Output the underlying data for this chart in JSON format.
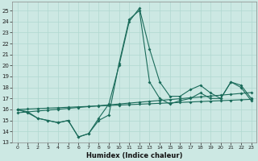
{
  "xlabel": "Humidex (Indice chaleur)",
  "background_color": "#cce8e3",
  "grid_color": "#b0d8d0",
  "line_color": "#1a6b5a",
  "xlim": [
    -0.5,
    23.5
  ],
  "ylim": [
    13,
    25.8
  ],
  "yticks": [
    13,
    14,
    15,
    16,
    17,
    18,
    19,
    20,
    21,
    22,
    23,
    24,
    25
  ],
  "xticks": [
    0,
    1,
    2,
    3,
    4,
    5,
    6,
    7,
    8,
    9,
    10,
    11,
    12,
    13,
    14,
    15,
    16,
    17,
    18,
    19,
    20,
    21,
    22,
    23
  ],
  "series1": [
    16.0,
    15.7,
    15.2,
    15.0,
    14.8,
    15.0,
    13.5,
    13.8,
    15.2,
    16.5,
    20.0,
    24.0,
    25.2,
    21.5,
    18.5,
    17.2,
    17.2,
    17.8,
    18.2,
    17.5,
    17.0,
    18.5,
    18.2,
    17.0
  ],
  "series2": [
    16.0,
    15.8,
    15.2,
    15.0,
    14.8,
    15.0,
    13.5,
    13.8,
    15.0,
    15.5,
    20.2,
    24.2,
    25.0,
    18.5,
    17.0,
    16.5,
    16.8,
    17.0,
    17.5,
    17.0,
    17.0,
    18.5,
    18.0,
    16.8
  ],
  "series3": [
    15.7,
    15.78,
    15.86,
    15.94,
    16.02,
    16.1,
    16.18,
    16.26,
    16.34,
    16.42,
    16.5,
    16.58,
    16.66,
    16.74,
    16.82,
    16.9,
    16.98,
    17.06,
    17.14,
    17.22,
    17.3,
    17.38,
    17.46,
    17.54
  ],
  "series4": [
    16.0,
    16.04,
    16.08,
    16.12,
    16.16,
    16.2,
    16.24,
    16.28,
    16.32,
    16.36,
    16.4,
    16.44,
    16.48,
    16.52,
    16.56,
    16.6,
    16.64,
    16.68,
    16.72,
    16.76,
    16.8,
    16.84,
    16.88,
    16.92
  ]
}
